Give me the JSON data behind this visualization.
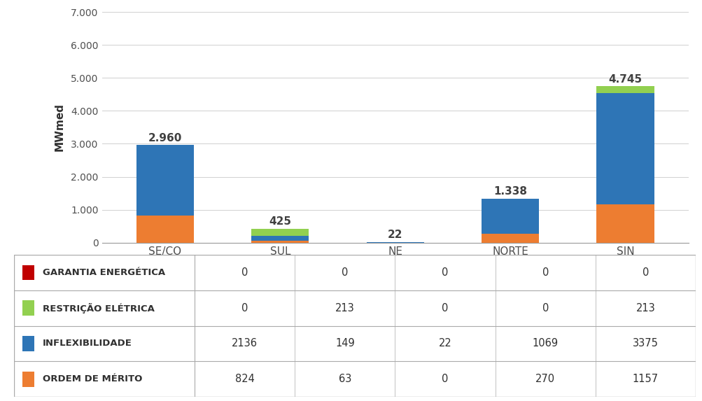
{
  "categories": [
    "SE/CO",
    "SUL",
    "NE",
    "NORTE",
    "SIN"
  ],
  "series": {
    "GARANTIA ENERGÉTICA": [
      0,
      0,
      0,
      0,
      0
    ],
    "RESTRIÇÃO ELÉTRICA": [
      0,
      213,
      0,
      0,
      213
    ],
    "INFLEXIBILIDADE": [
      2136,
      149,
      22,
      1069,
      3375
    ],
    "ORDEM DE MÉRITO": [
      824,
      63,
      0,
      270,
      1157
    ]
  },
  "colors": {
    "GARANTIA ENERGÉTICA": "#c00000",
    "RESTRIÇÃO ELÉTRICA": "#92d050",
    "INFLEXIBILIDADE": "#2e75b6",
    "ORDEM DE MÉRITO": "#ed7d31"
  },
  "totals": [
    2960,
    425,
    22,
    1338,
    4745
  ],
  "total_labels": [
    "2.960",
    "425",
    "22",
    "1.338",
    "4.745"
  ],
  "ylabel": "MWmed",
  "ylim": [
    0,
    7000
  ],
  "yticks": [
    0,
    1000,
    2000,
    3000,
    4000,
    5000,
    6000,
    7000
  ],
  "ytick_labels": [
    "0",
    "1.000",
    "2.000",
    "3.000",
    "4.000",
    "5.000",
    "6.000",
    "7.000"
  ],
  "table_rows": [
    "GARANTIA ENERGÉTICA",
    "RESTRIÇÃO ELÉTRICA",
    "INFLEXIBILIDADE",
    "ORDEM DE MÉRITO"
  ],
  "table_data": {
    "GARANTIA ENERGÉTICA": [
      "0",
      "0",
      "0",
      "0",
      "0"
    ],
    "RESTRIÇÃO ELÉTRICA": [
      "0",
      "213",
      "0",
      "0",
      "213"
    ],
    "INFLEXIBILIDADE": [
      "2136",
      "149",
      "22",
      "1069",
      "3375"
    ],
    "ORDEM DE MÉRITO": [
      "824",
      "63",
      "0",
      "270",
      "1157"
    ]
  },
  "background_color": "#ffffff",
  "bar_width": 0.5,
  "stack_order": [
    "ORDEM DE MÉRITO",
    "INFLEXIBILIDADE",
    "RESTRIÇÃO ELÉTRICA",
    "GARANTIA ENERGÉTICA"
  ]
}
